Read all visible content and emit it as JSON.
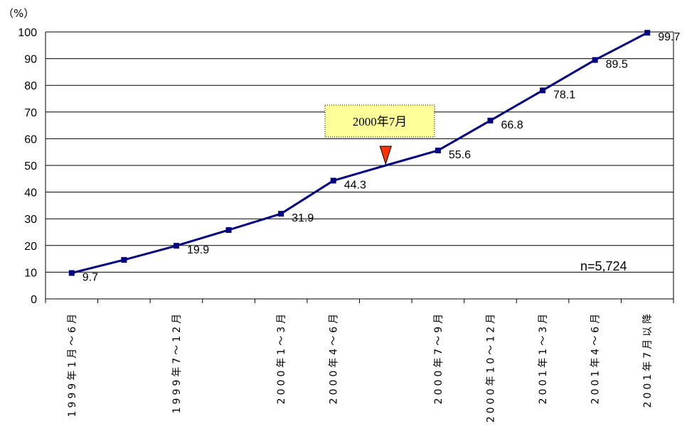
{
  "chart_data": {
    "type": "line",
    "unit_label": "（%）",
    "categories": [
      "1999年1月～6月",
      "",
      "1999年7～12月",
      "",
      "2000年1～3月",
      "2000年4～6月",
      "",
      "2000年7～9月",
      "2000年10～12月",
      "2001年1～3月",
      "2001年4～6月",
      "2001年7月以降"
    ],
    "values": [
      9.7,
      14.6,
      19.9,
      25.8,
      31.9,
      44.3,
      50.0,
      55.6,
      66.8,
      78.1,
      89.5,
      99.7
    ],
    "data_labels": [
      "9.7",
      "",
      "19.9",
      "",
      "31.9",
      "44.3",
      "",
      "55.6",
      "66.8",
      "78.1",
      "89.5",
      "99.7"
    ],
    "ylim": [
      0,
      100
    ],
    "yticks": [
      "0",
      "10",
      "20",
      "30",
      "40",
      "50",
      "60",
      "70",
      "80",
      "90",
      "100"
    ],
    "grid": true,
    "line_color": "#000080",
    "marker_color": "#000080",
    "annotation": {
      "text": "2000年7月",
      "marker_color": "#ff3300",
      "box_color": "#ffff99",
      "at_value": 50
    },
    "note": "n=5,724"
  }
}
